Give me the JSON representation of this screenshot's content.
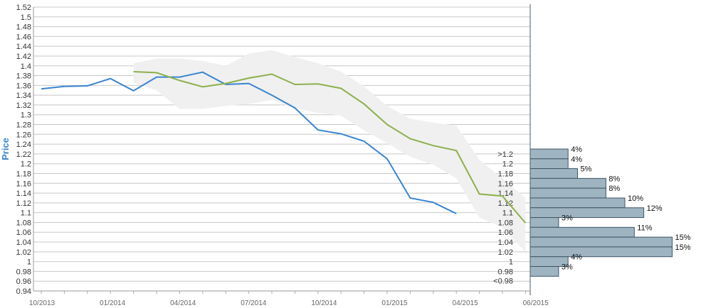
{
  "chart_data": {
    "type": "line",
    "title": "",
    "ylabel": "Price",
    "xlabel": "",
    "ylim": [
      0.94,
      1.52
    ],
    "y_ticks": [
      "0.94",
      "0.96",
      "0.98",
      "1",
      "1.02",
      "1.04",
      "1.06",
      "1.08",
      "1.1",
      "1.12",
      "1.14",
      "1.16",
      "1.18",
      "1.2",
      "1.22",
      "1.24",
      "1.26",
      "1.28",
      "1.3",
      "1.32",
      "1.34",
      "1.36",
      "1.38",
      "1.4",
      "1.42",
      "1.44",
      "1.46",
      "1.48",
      "1.5",
      "1.52"
    ],
    "x_ticks": [
      "10/2013",
      "01/2014",
      "04/2014",
      "07/2014",
      "10/2014",
      "01/2015",
      "04/2015",
      "06/2015"
    ],
    "grid": true,
    "legend": "none",
    "colors": {
      "actual": "#3a85d0",
      "forecast": "#8cb04c",
      "band": "#f0f0f0",
      "bars": "#9fb4c1",
      "bars_edge": "#3d5566",
      "ylabel": "#3a85d0"
    },
    "series": [
      {
        "values": [
          [
            0,
            1.353
          ],
          [
            1,
            1.358
          ],
          [
            2,
            1.359
          ],
          [
            3,
            1.374
          ],
          [
            4,
            1.349
          ],
          [
            5,
            1.377
          ],
          [
            6,
            1.377
          ],
          [
            7,
            1.387
          ],
          [
            8,
            1.362
          ],
          [
            9,
            1.364
          ],
          [
            10,
            1.34
          ],
          [
            11,
            1.314
          ],
          [
            12,
            1.269
          ],
          [
            13,
            1.261
          ],
          [
            14,
            1.246
          ],
          [
            15,
            1.21
          ],
          [
            16,
            1.13
          ],
          [
            17,
            1.121
          ],
          [
            18,
            1.098
          ]
        ]
      },
      {
        "values": [
          [
            4,
            1.388
          ],
          [
            5,
            1.386
          ],
          [
            6,
            1.37
          ],
          [
            7,
            1.357
          ],
          [
            8,
            1.364
          ],
          [
            9,
            1.375
          ],
          [
            10,
            1.383
          ],
          [
            11,
            1.362
          ],
          [
            12,
            1.363
          ],
          [
            13,
            1.354
          ],
          [
            14,
            1.322
          ],
          [
            15,
            1.28
          ],
          [
            16,
            1.251
          ],
          [
            17,
            1.237
          ],
          [
            18,
            1.227
          ],
          [
            19,
            1.138
          ],
          [
            20,
            1.134
          ],
          [
            21,
            1.079
          ]
        ]
      }
    ],
    "band": {
      "upper": [
        [
          4,
          1.405
        ],
        [
          5,
          1.415
        ],
        [
          6,
          1.415
        ],
        [
          7,
          1.41
        ],
        [
          8,
          1.4
        ],
        [
          9,
          1.425
        ],
        [
          10,
          1.432
        ],
        [
          11,
          1.418
        ],
        [
          12,
          1.405
        ],
        [
          13,
          1.388
        ],
        [
          14,
          1.358
        ],
        [
          15,
          1.318
        ],
        [
          16,
          1.292
        ],
        [
          17,
          1.284
        ],
        [
          18,
          1.278
        ],
        [
          19,
          1.208
        ],
        [
          20,
          1.17
        ],
        [
          21,
          1.13
        ]
      ],
      "lower": [
        [
          21,
          1.02
        ],
        [
          20,
          1.07
        ],
        [
          19,
          1.09
        ],
        [
          18,
          1.17
        ],
        [
          17,
          1.198
        ],
        [
          16,
          1.214
        ],
        [
          15,
          1.242
        ],
        [
          14,
          1.268
        ],
        [
          13,
          1.298
        ],
        [
          12,
          1.304
        ],
        [
          11,
          1.313
        ],
        [
          10,
          1.33
        ],
        [
          9,
          1.322
        ],
        [
          8,
          1.318
        ],
        [
          7,
          1.312
        ],
        [
          6,
          1.312
        ],
        [
          5,
          1.35
        ],
        [
          4,
          1.365
        ]
      ]
    },
    "histogram": {
      "bins": [
        {
          "label": ">1.2",
          "y_low": 1.21,
          "y_high": 1.23,
          "pct": 4,
          "pct_label": "4%"
        },
        {
          "label": "1.2",
          "y_low": 1.19,
          "y_high": 1.21,
          "pct": 4,
          "pct_label": "4%"
        },
        {
          "label": "1.18",
          "y_low": 1.17,
          "y_high": 1.19,
          "pct": 5,
          "pct_label": "5%"
        },
        {
          "label": "1.16",
          "y_low": 1.15,
          "y_high": 1.17,
          "pct": 8,
          "pct_label": "8%"
        },
        {
          "label": "1.14",
          "y_low": 1.13,
          "y_high": 1.15,
          "pct": 8,
          "pct_label": "8%"
        },
        {
          "label": "1.12",
          "y_low": 1.11,
          "y_high": 1.13,
          "pct": 10,
          "pct_label": "10%"
        },
        {
          "label": "1.1",
          "y_low": 1.09,
          "y_high": 1.11,
          "pct": 12,
          "pct_label": "12%"
        },
        {
          "label": "1.08",
          "y_low": 1.07,
          "y_high": 1.09,
          "pct": 3,
          "pct_label": "3%"
        },
        {
          "label": "1.06",
          "y_low": 1.05,
          "y_high": 1.07,
          "pct": 11,
          "pct_label": "11%"
        },
        {
          "label": "1.04",
          "y_low": 1.03,
          "y_high": 1.05,
          "pct": 15,
          "pct_label": "15%"
        },
        {
          "label": "1.02",
          "y_low": 1.01,
          "y_high": 1.03,
          "pct": 15,
          "pct_label": "15%"
        },
        {
          "label": "1",
          "y_low": 0.99,
          "y_high": 1.01,
          "pct": 4,
          "pct_label": "4%"
        },
        {
          "label": "0.98",
          "y_low": 0.97,
          "y_high": 0.99,
          "pct": 3,
          "pct_label": "3%"
        },
        {
          "label": "<0.98",
          "y_low": 0.97,
          "y_high": 0.97,
          "pct": 0,
          "pct_label": ""
        }
      ]
    }
  }
}
